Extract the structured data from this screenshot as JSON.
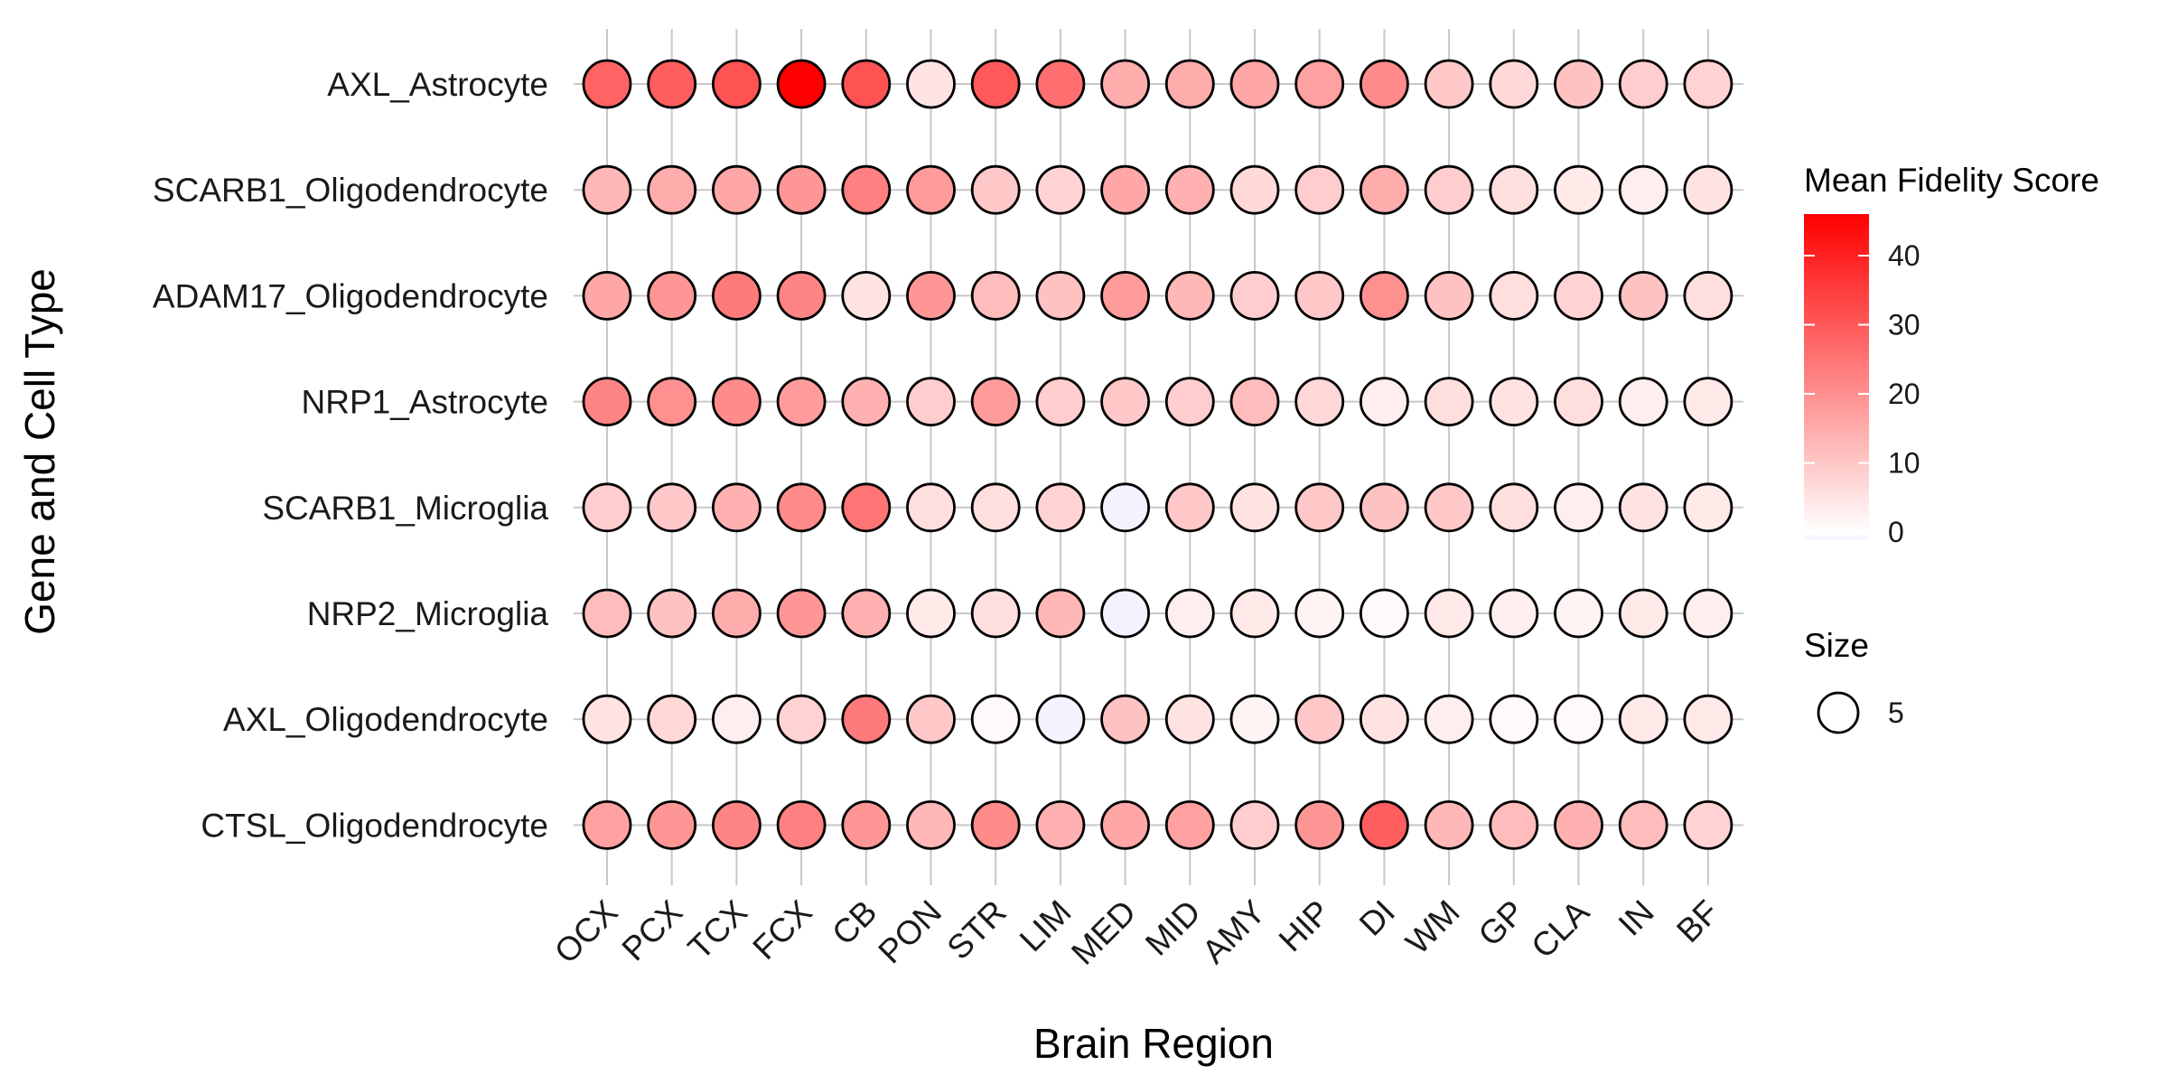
{
  "chart_data": {
    "type": "dot-heatmap",
    "xlabel": "Brain Region",
    "ylabel": "Gene and Cell Type",
    "x_categories": [
      "OCX",
      "PCX",
      "TCX",
      "FCX",
      "CB",
      "PON",
      "STR",
      "LIM",
      "MED",
      "MID",
      "AMY",
      "HIP",
      "DI",
      "WM",
      "GP",
      "CLA",
      "IN",
      "BF"
    ],
    "y_categories": [
      "AXL_Astrocyte",
      "SCARB1_Oligodendrocyte",
      "ADAM17_Oligodendrocyte",
      "NRP1_Astrocyte",
      "SCARB1_Microglia",
      "NRP2_Microglia",
      "AXL_Oligodendrocyte",
      "CTSL_Oligodendrocyte"
    ],
    "values": [
      [
        28,
        29,
        31,
        46,
        31,
        5,
        30,
        26,
        15,
        15,
        16,
        17,
        21,
        10,
        7,
        11,
        9,
        8
      ],
      [
        13,
        15,
        16,
        19,
        23,
        18,
        10,
        8,
        16,
        14,
        7,
        9,
        15,
        9,
        6,
        4,
        3,
        5
      ],
      [
        16,
        19,
        24,
        22,
        5,
        19,
        12,
        11,
        18,
        13,
        9,
        10,
        20,
        11,
        6,
        8,
        11,
        6
      ],
      [
        22,
        20,
        21,
        18,
        14,
        9,
        18,
        9,
        10,
        9,
        12,
        7,
        3,
        6,
        5,
        6,
        3,
        4
      ],
      [
        9,
        10,
        14,
        21,
        25,
        6,
        6,
        8,
        0,
        10,
        5,
        10,
        11,
        10,
        6,
        3,
        5,
        4
      ],
      [
        12,
        11,
        15,
        19,
        14,
        4,
        6,
        13,
        -1,
        3,
        4,
        2,
        1,
        4,
        3,
        2,
        4,
        3
      ],
      [
        5,
        7,
        3,
        8,
        24,
        10,
        1,
        0,
        11,
        5,
        2,
        10,
        5,
        3,
        1,
        1,
        4,
        4
      ],
      [
        17,
        19,
        22,
        23,
        19,
        13,
        21,
        14,
        16,
        17,
        9,
        19,
        29,
        13,
        12,
        14,
        12,
        8
      ]
    ],
    "color_scale": {
      "title": "Mean Fidelity Score",
      "min": 0,
      "max": 46,
      "ticks": [
        0,
        10,
        20,
        30,
        40
      ],
      "low_color": "#f3f3ff",
      "high_color": "#ff0000"
    },
    "size_legend": {
      "title": "Size",
      "value": 5
    },
    "grid": true,
    "legend_position": "right"
  }
}
